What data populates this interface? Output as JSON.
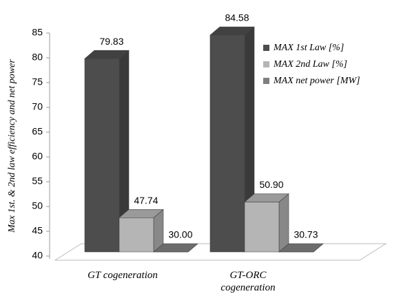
{
  "chart_data": {
    "type": "bar3d",
    "y_label": "Max 1st. & 2nd law efficiency and net power",
    "categories": [
      "GT cogeneration",
      "GT-ORC cogeneration"
    ],
    "series": [
      {
        "name": "MAX 1st Law [%]",
        "color": "#4d4d4d",
        "values": [
          79.83,
          84.58
        ]
      },
      {
        "name": "MAX 2nd Law [%]",
        "color": "#b5b5b5",
        "values": [
          47.74,
          50.9
        ],
        "value_labels": [
          "47.74",
          "50.90"
        ]
      },
      {
        "name": "MAX net power [MW]",
        "color": "#7f7f7f",
        "values": [
          30,
          30.73
        ],
        "value_labels": [
          "30.00",
          "30.73"
        ]
      }
    ],
    "ylim": [
      40,
      85
    ],
    "yticks": [
      40,
      45,
      50,
      55,
      60,
      65,
      70,
      75,
      80,
      85
    ],
    "legend": "right"
  }
}
